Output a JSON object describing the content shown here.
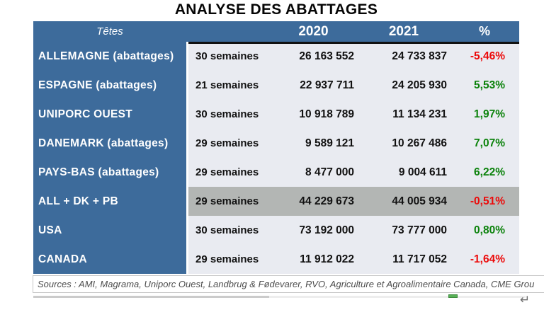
{
  "title": "ANALYSE DES ABATTAGES",
  "table": {
    "header": {
      "tetes": "Têtes",
      "y2020": "2020",
      "y2021": "2021",
      "pct": "%"
    },
    "rows": [
      {
        "name": "ALLEMAGNE (abattages)",
        "weeks": "30 semaines",
        "v2020": "26 163 552",
        "v2021": "24 733 837",
        "pct": "-5,46%",
        "trend": "negative",
        "highlight": false
      },
      {
        "name": "ESPAGNE (abattages)",
        "weeks": "21 semaines",
        "v2020": "22 937 711",
        "v2021": "24 205 930",
        "pct": "5,53%",
        "trend": "positive",
        "highlight": false
      },
      {
        "name": "UNIPORC OUEST",
        "weeks": "30 semaines",
        "v2020": "10 918 789",
        "v2021": "11 134 231",
        "pct": "1,97%",
        "trend": "positive",
        "highlight": false
      },
      {
        "name": "DANEMARK (abattages)",
        "weeks": "29 semaines",
        "v2020": "9 589 121",
        "v2021": "10 267 486",
        "pct": "7,07%",
        "trend": "positive",
        "highlight": false
      },
      {
        "name": "PAYS-BAS (abattages)",
        "weeks": "29 semaines",
        "v2020": "8 477 000",
        "v2021": "9 004 611",
        "pct": "6,22%",
        "trend": "positive",
        "highlight": false
      },
      {
        "name": "ALL + DK + PB",
        "weeks": "29 semaines",
        "v2020": "44 229 673",
        "v2021": "44 005 934",
        "pct": "-0,51%",
        "trend": "negative",
        "highlight": true
      },
      {
        "name": "USA",
        "weeks": "30 semaines",
        "v2020": "73 192 000",
        "v2021": "73 777 000",
        "pct": "0,80%",
        "trend": "positive",
        "highlight": false
      },
      {
        "name": "CANADA",
        "weeks": "29 semaines",
        "v2020": "11 912 022",
        "v2021": "11 717 052",
        "pct": "-1,64%",
        "trend": "negative",
        "highlight": false
      }
    ]
  },
  "footer": {
    "sources": "Sources : AMI, Magrama, Uniporc Ouest, Landbrug & Fødevarer, RVO, Agriculture et Agroalimentaire Canada, CME Grou"
  },
  "marks": {
    "return_mark": "↵"
  },
  "colors": {
    "header_blue": "#3D6B9B",
    "row_light": "#E9EBF1",
    "row_highlight": "#B3B6B4",
    "positive_green": "#0B820B",
    "negative_red": "#EC0A0A"
  }
}
